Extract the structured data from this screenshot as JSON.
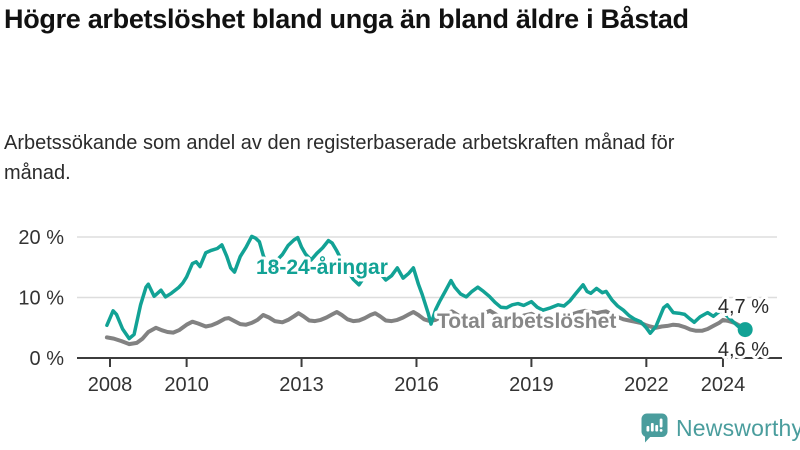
{
  "header": {
    "title": "Högre arbetslöshet bland unga än bland äldre i Båstad",
    "subtitle": "Arbetssökande som andel av den registerbaserade arbetskraften månad för månad."
  },
  "chart_data": {
    "type": "line",
    "grid": "horizontal",
    "ylim": [
      0,
      22
    ],
    "x_range": [
      2007.9,
      2024.6
    ],
    "y_ticks": [
      {
        "value": 0,
        "label": "0 %"
      },
      {
        "value": 10,
        "label": "10 %"
      },
      {
        "value": 20,
        "label": "20 %"
      }
    ],
    "x_ticks": [
      {
        "year": 2008,
        "label": "2008"
      },
      {
        "year": 2010,
        "label": "2010"
      },
      {
        "year": 2013,
        "label": "2013"
      },
      {
        "year": 2016,
        "label": "2016"
      },
      {
        "year": 2019,
        "label": "2019"
      },
      {
        "year": 2022,
        "label": "2022"
      },
      {
        "year": 2024,
        "label": "2024"
      }
    ],
    "series": [
      {
        "name": "Total arbetslöshet",
        "color": "#828282",
        "width": 4,
        "end_label": "4,6 %",
        "points": [
          [
            2007.92,
            3.4
          ],
          [
            2008.1,
            3.2
          ],
          [
            2008.3,
            2.8
          ],
          [
            2008.5,
            2.3
          ],
          [
            2008.7,
            2.5
          ],
          [
            2008.85,
            3.2
          ],
          [
            2009.0,
            4.3
          ],
          [
            2009.2,
            5.0
          ],
          [
            2009.35,
            4.6
          ],
          [
            2009.5,
            4.3
          ],
          [
            2009.65,
            4.2
          ],
          [
            2009.8,
            4.6
          ],
          [
            2010.0,
            5.5
          ],
          [
            2010.15,
            6.0
          ],
          [
            2010.3,
            5.7
          ],
          [
            2010.5,
            5.2
          ],
          [
            2010.65,
            5.4
          ],
          [
            2010.8,
            5.8
          ],
          [
            2011.0,
            6.5
          ],
          [
            2011.1,
            6.6
          ],
          [
            2011.25,
            6.1
          ],
          [
            2011.4,
            5.6
          ],
          [
            2011.55,
            5.5
          ],
          [
            2011.7,
            5.8
          ],
          [
            2011.85,
            6.3
          ],
          [
            2012.0,
            7.1
          ],
          [
            2012.15,
            6.7
          ],
          [
            2012.3,
            6.1
          ],
          [
            2012.5,
            5.9
          ],
          [
            2012.65,
            6.3
          ],
          [
            2012.8,
            6.9
          ],
          [
            2012.92,
            7.4
          ],
          [
            2013.05,
            6.9
          ],
          [
            2013.2,
            6.2
          ],
          [
            2013.35,
            6.1
          ],
          [
            2013.5,
            6.3
          ],
          [
            2013.65,
            6.7
          ],
          [
            2013.8,
            7.2
          ],
          [
            2013.92,
            7.6
          ],
          [
            2014.05,
            7.1
          ],
          [
            2014.2,
            6.4
          ],
          [
            2014.35,
            6.1
          ],
          [
            2014.5,
            6.2
          ],
          [
            2014.65,
            6.6
          ],
          [
            2014.8,
            7.1
          ],
          [
            2014.92,
            7.4
          ],
          [
            2015.05,
            6.9
          ],
          [
            2015.2,
            6.2
          ],
          [
            2015.35,
            6.1
          ],
          [
            2015.5,
            6.3
          ],
          [
            2015.65,
            6.7
          ],
          [
            2015.8,
            7.2
          ],
          [
            2015.92,
            7.6
          ],
          [
            2016.05,
            7.1
          ],
          [
            2016.2,
            6.4
          ],
          [
            2016.35,
            6.1
          ],
          [
            2016.5,
            6.3
          ],
          [
            2016.65,
            6.8
          ],
          [
            2016.8,
            7.3
          ],
          [
            2016.92,
            7.7
          ],
          [
            2017.05,
            7.2
          ],
          [
            2017.2,
            6.6
          ],
          [
            2017.35,
            6.4
          ],
          [
            2017.5,
            6.6
          ],
          [
            2017.65,
            7.0
          ],
          [
            2017.8,
            7.5
          ],
          [
            2017.92,
            7.8
          ],
          [
            2018.05,
            7.3
          ],
          [
            2018.2,
            6.7
          ],
          [
            2018.35,
            6.4
          ],
          [
            2018.5,
            6.5
          ],
          [
            2018.65,
            6.7
          ],
          [
            2018.8,
            7.0
          ],
          [
            2019.0,
            7.3
          ],
          [
            2019.15,
            6.8
          ],
          [
            2019.3,
            6.5
          ],
          [
            2019.5,
            6.5
          ],
          [
            2019.65,
            6.7
          ],
          [
            2019.8,
            6.9
          ],
          [
            2020.0,
            7.1
          ],
          [
            2020.2,
            7.5
          ],
          [
            2020.4,
            7.8
          ],
          [
            2020.55,
            7.6
          ],
          [
            2020.7,
            7.4
          ],
          [
            2020.85,
            7.6
          ],
          [
            2020.95,
            7.7
          ],
          [
            2021.1,
            7.2
          ],
          [
            2021.25,
            6.8
          ],
          [
            2021.4,
            6.4
          ],
          [
            2021.55,
            6.2
          ],
          [
            2021.7,
            6.0
          ],
          [
            2021.85,
            5.8
          ],
          [
            2022.0,
            5.4
          ],
          [
            2022.1,
            5.2
          ],
          [
            2022.25,
            5.0
          ],
          [
            2022.4,
            5.2
          ],
          [
            2022.55,
            5.3
          ],
          [
            2022.7,
            5.5
          ],
          [
            2022.85,
            5.4
          ],
          [
            2023.0,
            5.1
          ],
          [
            2023.15,
            4.7
          ],
          [
            2023.3,
            4.5
          ],
          [
            2023.45,
            4.5
          ],
          [
            2023.6,
            4.8
          ],
          [
            2023.75,
            5.3
          ],
          [
            2023.9,
            5.8
          ],
          [
            2024.0,
            6.3
          ],
          [
            2024.15,
            6.1
          ],
          [
            2024.3,
            5.8
          ],
          [
            2024.45,
            5.3
          ],
          [
            2024.58,
            4.6
          ]
        ]
      },
      {
        "name": "18-24-åringar",
        "color": "#12a295",
        "width": 3.5,
        "end_label": "4,7 %",
        "points": [
          [
            2007.92,
            5.4
          ],
          [
            2008.08,
            7.8
          ],
          [
            2008.17,
            7.2
          ],
          [
            2008.33,
            4.8
          ],
          [
            2008.5,
            3.2
          ],
          [
            2008.63,
            3.9
          ],
          [
            2008.8,
            8.8
          ],
          [
            2008.94,
            11.7
          ],
          [
            2009.0,
            12.2
          ],
          [
            2009.15,
            10.2
          ],
          [
            2009.33,
            11.2
          ],
          [
            2009.45,
            10.1
          ],
          [
            2009.6,
            10.7
          ],
          [
            2009.8,
            11.7
          ],
          [
            2009.9,
            12.4
          ],
          [
            2010.0,
            13.4
          ],
          [
            2010.15,
            15.6
          ],
          [
            2010.25,
            15.9
          ],
          [
            2010.35,
            15.1
          ],
          [
            2010.5,
            17.4
          ],
          [
            2010.65,
            17.8
          ],
          [
            2010.8,
            18.1
          ],
          [
            2010.92,
            18.7
          ],
          [
            2011.05,
            16.8
          ],
          [
            2011.15,
            14.9
          ],
          [
            2011.25,
            14.2
          ],
          [
            2011.4,
            16.8
          ],
          [
            2011.55,
            18.3
          ],
          [
            2011.7,
            20.1
          ],
          [
            2011.8,
            19.8
          ],
          [
            2011.9,
            19.2
          ],
          [
            2012.0,
            17.0
          ],
          [
            2012.1,
            15.2
          ],
          [
            2012.2,
            14.2
          ],
          [
            2012.35,
            16.1
          ],
          [
            2012.5,
            17.1
          ],
          [
            2012.65,
            18.6
          ],
          [
            2012.8,
            19.5
          ],
          [
            2012.9,
            19.9
          ],
          [
            2013.0,
            18.3
          ],
          [
            2013.1,
            17.2
          ],
          [
            2013.25,
            16.2
          ],
          [
            2013.4,
            17.3
          ],
          [
            2013.55,
            18.2
          ],
          [
            2013.7,
            19.4
          ],
          [
            2013.8,
            19.0
          ],
          [
            2013.92,
            17.7
          ],
          [
            2014.05,
            16.1
          ],
          [
            2014.2,
            14.4
          ],
          [
            2014.35,
            13.0
          ],
          [
            2014.5,
            12.1
          ],
          [
            2014.65,
            13.5
          ],
          [
            2014.8,
            14.6
          ],
          [
            2014.92,
            15.7
          ],
          [
            2015.05,
            14.0
          ],
          [
            2015.2,
            12.9
          ],
          [
            2015.35,
            13.6
          ],
          [
            2015.5,
            14.9
          ],
          [
            2015.65,
            13.2
          ],
          [
            2015.8,
            14.0
          ],
          [
            2015.92,
            14.9
          ],
          [
            2016.05,
            12.2
          ],
          [
            2016.15,
            10.5
          ],
          [
            2016.3,
            7.5
          ],
          [
            2016.38,
            5.6
          ],
          [
            2016.5,
            8.0
          ],
          [
            2016.6,
            9.3
          ],
          [
            2016.75,
            11.0
          ],
          [
            2016.9,
            12.8
          ],
          [
            2017.0,
            11.7
          ],
          [
            2017.15,
            10.6
          ],
          [
            2017.3,
            10.1
          ],
          [
            2017.45,
            11.0
          ],
          [
            2017.6,
            11.7
          ],
          [
            2017.75,
            11.0
          ],
          [
            2017.9,
            10.2
          ],
          [
            2018.05,
            9.2
          ],
          [
            2018.2,
            8.4
          ],
          [
            2018.35,
            8.3
          ],
          [
            2018.5,
            8.8
          ],
          [
            2018.65,
            9.0
          ],
          [
            2018.8,
            8.7
          ],
          [
            2019.0,
            9.3
          ],
          [
            2019.15,
            8.4
          ],
          [
            2019.3,
            7.9
          ],
          [
            2019.5,
            8.3
          ],
          [
            2019.7,
            8.8
          ],
          [
            2019.85,
            8.6
          ],
          [
            2020.0,
            9.4
          ],
          [
            2020.15,
            10.6
          ],
          [
            2020.35,
            12.1
          ],
          [
            2020.45,
            11.0
          ],
          [
            2020.55,
            10.7
          ],
          [
            2020.7,
            11.5
          ],
          [
            2020.85,
            10.8
          ],
          [
            2020.95,
            11.0
          ],
          [
            2021.1,
            9.6
          ],
          [
            2021.25,
            8.6
          ],
          [
            2021.4,
            7.9
          ],
          [
            2021.55,
            7.0
          ],
          [
            2021.7,
            6.4
          ],
          [
            2021.85,
            6.0
          ],
          [
            2022.0,
            5.0
          ],
          [
            2022.1,
            4.1
          ],
          [
            2022.25,
            5.2
          ],
          [
            2022.45,
            8.3
          ],
          [
            2022.55,
            8.8
          ],
          [
            2022.7,
            7.5
          ],
          [
            2022.85,
            7.4
          ],
          [
            2023.0,
            7.2
          ],
          [
            2023.15,
            6.4
          ],
          [
            2023.25,
            5.9
          ],
          [
            2023.4,
            6.8
          ],
          [
            2023.6,
            7.5
          ],
          [
            2023.75,
            6.9
          ],
          [
            2023.95,
            7.9
          ],
          [
            2024.1,
            7.0
          ],
          [
            2024.25,
            6.1
          ],
          [
            2024.4,
            5.2
          ],
          [
            2024.58,
            4.7
          ]
        ]
      }
    ]
  },
  "colors": {
    "accent_teal": "#12a295",
    "line_gray": "#828282",
    "axis": "#3c3c3c",
    "gridline": "#dddddd",
    "brand_teal": "#4a9d9d"
  },
  "footer": {
    "brand": "Newsworthy"
  }
}
